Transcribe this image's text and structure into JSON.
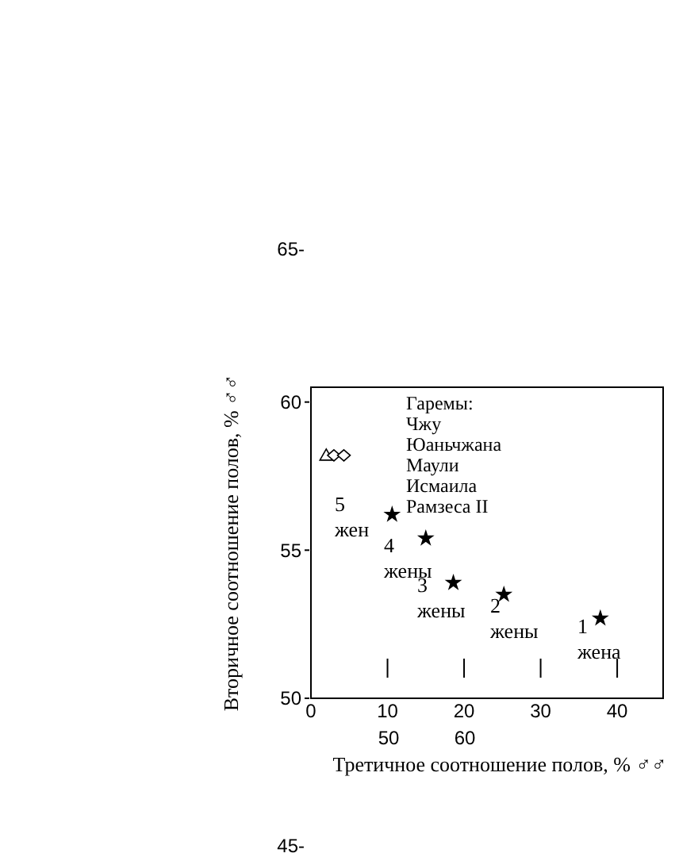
{
  "chart_data": {
    "type": "scatter",
    "xlabel": "Третичное соотношение полов, % ♂♂",
    "ylabel": "Вторичное соотношение полов, % ♂♂",
    "xlim": [
      0,
      46
    ],
    "xticks": [
      0,
      10,
      20,
      30,
      40
    ],
    "ylim": [
      50,
      60.5
    ],
    "yticks": [
      50,
      55,
      60
    ],
    "grid": false,
    "series": [
      {
        "color": "#000000",
        "marker": "triangle",
        "x": [
          2.0
        ],
        "values": [
          58.2
        ]
      },
      {
        "color": "#000000",
        "marker": "diamond",
        "x": [
          3.0,
          4.3
        ],
        "values": [
          58.2,
          58.2
        ]
      },
      {
        "color": "#000000",
        "marker": "star",
        "x": [
          10.6,
          15.0,
          18.6,
          25.2,
          37.8
        ],
        "values": [
          56.2,
          55.4,
          53.9,
          53.5,
          52.7
        ]
      }
    ],
    "annotations": [
      "Гаремы:\nЧжу\nЮаньчжана\nМаули\nИсмаила\nРамзеса II",
      "5\nжен",
      "4\nжены",
      "3\nжены",
      "2\nжены",
      "1\nжена",
      "50",
      "60",
      "65-",
      "45-"
    ]
  }
}
